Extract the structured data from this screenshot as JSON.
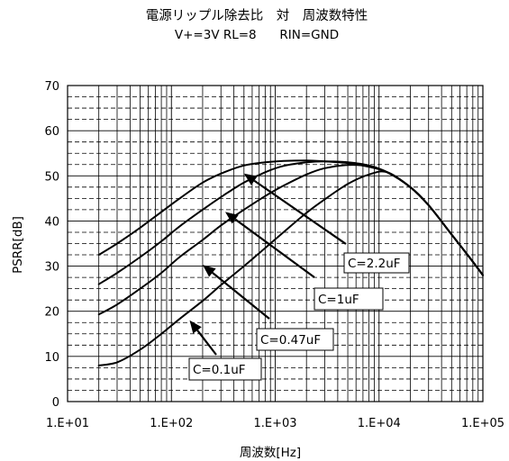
{
  "chart_data": {
    "type": "line",
    "title": "電源リップル除去比　対　周波数特性",
    "subtitle": "V+=3V RL=8      RIN=GND",
    "xlabel": "周波数[Hz]",
    "ylabel": "PSRR[dB]",
    "x_scale": "log",
    "xlim": [
      10,
      100000
    ],
    "ylim": [
      0,
      70
    ],
    "x_ticks": [
      10,
      100,
      1000,
      10000,
      100000
    ],
    "x_tick_labels": [
      "1.E+01",
      "1.E+02",
      "1.E+03",
      "1.E+04",
      "1.E+05"
    ],
    "y_ticks": [
      0,
      10,
      20,
      30,
      40,
      50,
      60,
      70
    ],
    "y_tick_labels": [
      "0",
      "10",
      "20",
      "30",
      "40",
      "50",
      "60",
      "70"
    ],
    "grid": true,
    "series": [
      {
        "name": "C=2.2uF",
        "x": [
          20,
          30,
          50,
          80,
          120,
          200,
          300,
          500,
          800,
          1200,
          2000,
          3000,
          5000,
          8000,
          12000,
          20000,
          30000,
          50000,
          80000,
          100000
        ],
        "y": [
          32.5,
          35,
          38.5,
          42,
          45,
          48.5,
          50.5,
          52.3,
          53,
          53.3,
          53.4,
          53.2,
          52.8,
          52,
          50.8,
          47.5,
          43.5,
          37,
          31,
          28
        ]
      },
      {
        "name": "C=1uF",
        "x": [
          20,
          30,
          50,
          80,
          120,
          200,
          300,
          500,
          800,
          1200,
          2000,
          3000,
          5000,
          8000,
          12000,
          20000,
          30000,
          50000,
          80000,
          100000
        ],
        "y": [
          26,
          28.5,
          32,
          35.5,
          38.8,
          42.5,
          45.3,
          48.5,
          50.8,
          52.2,
          53,
          53.2,
          53,
          52.3,
          50.8,
          47.5,
          43.5,
          37,
          31,
          28
        ]
      },
      {
        "name": "C=0.47uF",
        "x": [
          20,
          30,
          50,
          80,
          120,
          200,
          300,
          500,
          800,
          1200,
          2000,
          3000,
          5000,
          8000,
          12000,
          20000,
          30000,
          50000,
          80000,
          100000
        ],
        "y": [
          19.3,
          21.5,
          25,
          28.5,
          32,
          35.8,
          39,
          42.5,
          45.5,
          47.8,
          50.3,
          51.7,
          52.4,
          52.1,
          50.8,
          47.5,
          43.5,
          37,
          31,
          28
        ]
      },
      {
        "name": "C=0.1uF",
        "x": [
          20,
          30,
          50,
          80,
          120,
          200,
          300,
          500,
          800,
          1200,
          2000,
          3000,
          5000,
          8000,
          12000,
          20000,
          30000,
          50000,
          80000,
          100000
        ],
        "y": [
          8,
          8.7,
          11.5,
          15,
          18.3,
          22.3,
          25.8,
          30,
          34,
          37.5,
          41.8,
          44.8,
          48.2,
          50.3,
          50.8,
          47.5,
          43.5,
          37,
          31,
          28
        ]
      }
    ],
    "annotations": [
      {
        "text": "C=2.2uF",
        "arrow_to": [
          500,
          50.5
        ]
      },
      {
        "text": "C=1uF",
        "arrow_to": [
          330,
          42
        ]
      },
      {
        "text": "C=0.47uF",
        "arrow_to": [
          200,
          30.3
        ]
      },
      {
        "text": "C=0.1uF",
        "arrow_to": [
          150,
          18
        ]
      }
    ]
  }
}
